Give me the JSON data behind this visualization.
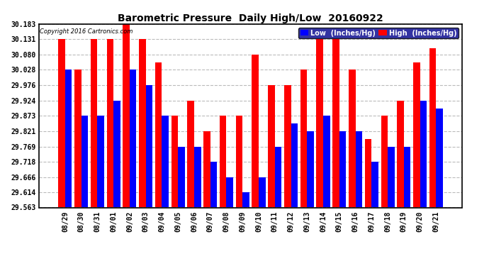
{
  "title": "Barometric Pressure  Daily High/Low  20160922",
  "copyright": "Copyright 2016 Cartronics.com",
  "legend_low": "Low  (Inches/Hg)",
  "legend_high": "High  (Inches/Hg)",
  "dates": [
    "08/29",
    "08/30",
    "08/31",
    "09/01",
    "09/02",
    "09/03",
    "09/04",
    "09/05",
    "09/06",
    "09/07",
    "09/08",
    "09/09",
    "09/10",
    "09/11",
    "09/12",
    "09/13",
    "09/14",
    "09/15",
    "09/16",
    "09/17",
    "09/18",
    "09/19",
    "09/20",
    "09/21"
  ],
  "high": [
    30.131,
    30.028,
    30.131,
    30.131,
    30.183,
    30.131,
    30.052,
    29.873,
    29.924,
    29.821,
    29.873,
    29.873,
    30.08,
    29.976,
    29.976,
    30.028,
    30.131,
    30.131,
    30.028,
    29.795,
    29.873,
    29.924,
    30.052,
    30.1
  ],
  "low": [
    30.028,
    29.873,
    29.873,
    29.924,
    30.028,
    29.976,
    29.873,
    29.769,
    29.769,
    29.718,
    29.666,
    29.614,
    29.666,
    29.769,
    29.848,
    29.821,
    29.873,
    29.821,
    29.821,
    29.718,
    29.769,
    29.769,
    29.924,
    29.897
  ],
  "ylim_min": 29.563,
  "ylim_max": 30.183,
  "yticks": [
    29.563,
    29.614,
    29.666,
    29.718,
    29.769,
    29.821,
    29.873,
    29.924,
    29.976,
    30.028,
    30.08,
    30.131,
    30.183
  ],
  "bg_color": "#ffffff",
  "bar_color_high": "#ff0000",
  "bar_color_low": "#0000ff",
  "grid_color": "#bbbbbb",
  "title_fontsize": 10,
  "tick_fontsize": 7,
  "bar_width": 0.42,
  "copyright_fontsize": 6,
  "legend_fontsize": 7
}
